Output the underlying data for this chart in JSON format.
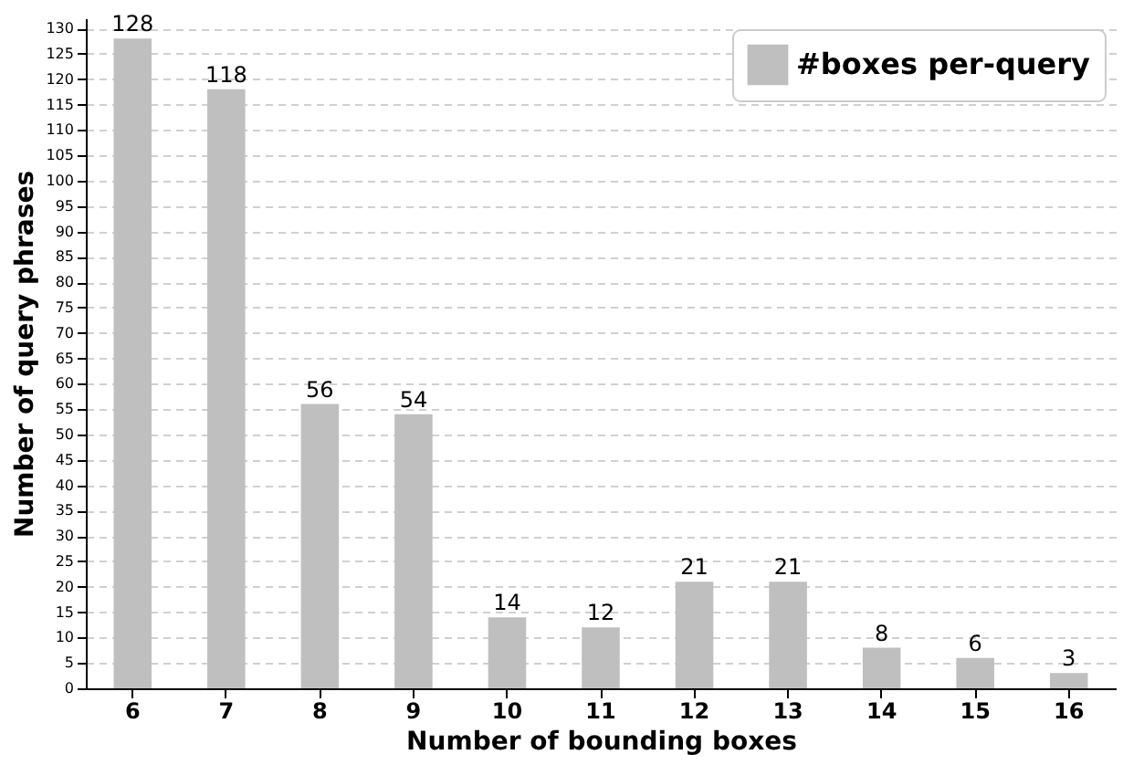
{
  "chart_data": {
    "type": "bar",
    "xlabel": "Number of bounding boxes",
    "ylabel": "Number of query phrases",
    "categories": [
      "6",
      "7",
      "8",
      "9",
      "10",
      "11",
      "12",
      "13",
      "14",
      "15",
      "16"
    ],
    "series": [
      {
        "name": "#boxes per-query",
        "color": "#bfbfbf",
        "values": [
          128,
          118,
          56,
          54,
          14,
          12,
          21,
          21,
          8,
          6,
          3
        ]
      }
    ],
    "ylim": [
      0,
      132
    ],
    "yticks": [
      0,
      5,
      10,
      15,
      20,
      25,
      30,
      35,
      40,
      45,
      50,
      55,
      60,
      65,
      70,
      75,
      80,
      85,
      90,
      95,
      100,
      105,
      110,
      115,
      120,
      125,
      130
    ],
    "grid": "y",
    "legend": "top right",
    "data_labels": true
  }
}
